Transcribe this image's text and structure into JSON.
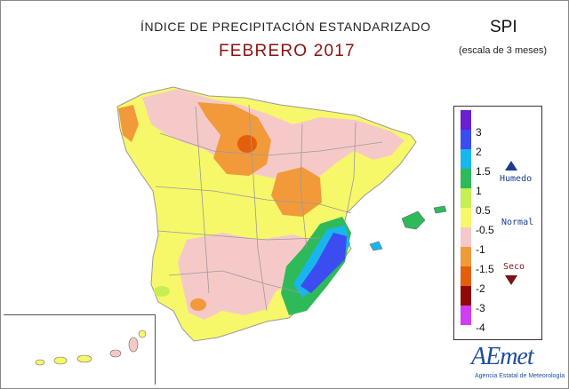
{
  "header": {
    "title": "ÍNDICE DE PRECIPITACIÓN ESTANDARIZADO",
    "subtitle": "FEBRERO 2017",
    "index_name": "SPI",
    "scale_note": "(escala de 3 meses)"
  },
  "legend": {
    "items": [
      {
        "label": "3",
        "color": "#6a1fd1"
      },
      {
        "label": "2",
        "color": "#3b4df0"
      },
      {
        "label": "1.5",
        "color": "#19b6ee"
      },
      {
        "label": "1",
        "color": "#2fba5a"
      },
      {
        "label": "0.5",
        "color": "#c6ef53"
      },
      {
        "label": "-0.5",
        "color": "#f7f76a"
      },
      {
        "label": "-1",
        "color": "#f6c9c9"
      },
      {
        "label": "-1.5",
        "color": "#f29a3a"
      },
      {
        "label": "-2",
        "color": "#e35f0c"
      },
      {
        "label": "-3",
        "color": "#8e0a0a"
      },
      {
        "label": "-4",
        "color": "#cf3ef0"
      }
    ],
    "wet_label": "Humedo",
    "normal_label": "Normal",
    "dry_label": "Seco"
  },
  "logo": {
    "mark": "AEmet",
    "name": "Agencia Estatal de Meteorología"
  }
}
